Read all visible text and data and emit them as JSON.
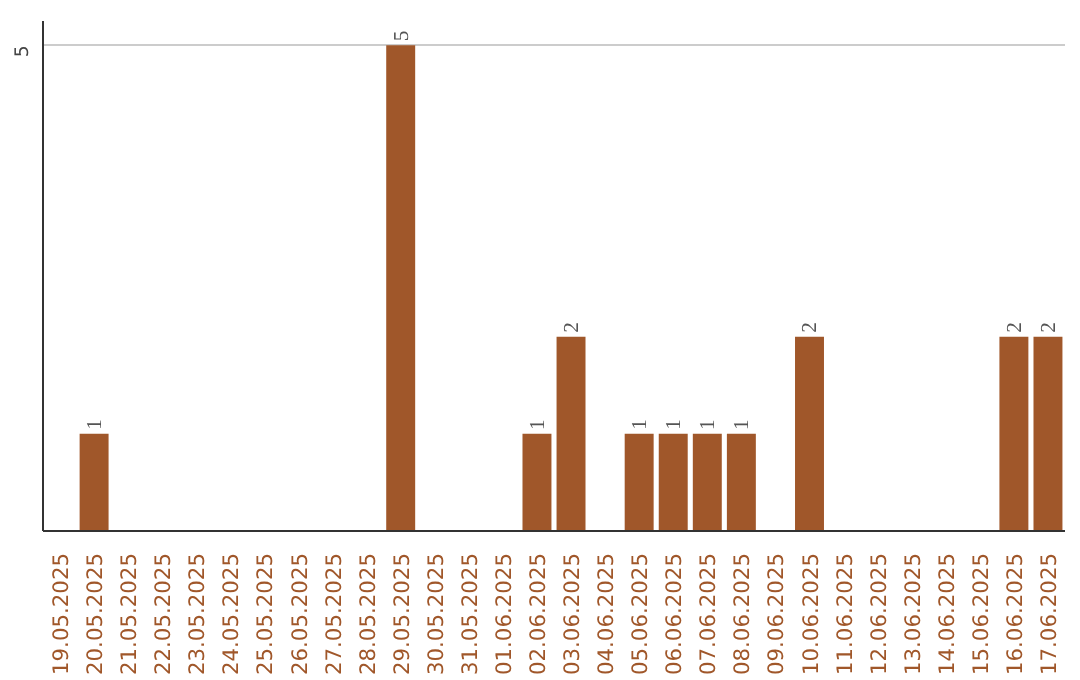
{
  "chart_data": {
    "type": "bar",
    "categories": [
      "19.05.2025",
      "20.05.2025",
      "21.05.2025",
      "22.05.2025",
      "23.05.2025",
      "24.05.2025",
      "25.05.2025",
      "26.05.2025",
      "27.05.2025",
      "28.05.2025",
      "29.05.2025",
      "30.05.2025",
      "31.05.2025",
      "01.06.2025",
      "02.06.2025",
      "03.06.2025",
      "04.06.2025",
      "05.06.2025",
      "06.06.2025",
      "07.06.2025",
      "08.06.2025",
      "09.06.2025",
      "10.06.2025",
      "11.06.2025",
      "12.06.2025",
      "13.06.2025",
      "14.06.2025",
      "15.06.2025",
      "16.06.2025",
      "17.06.2025"
    ],
    "values": [
      0,
      1,
      0,
      0,
      0,
      0,
      0,
      0,
      0,
      0,
      5,
      0,
      0,
      0,
      1,
      2,
      0,
      1,
      1,
      1,
      1,
      0,
      2,
      0,
      0,
      0,
      0,
      0,
      2,
      2
    ],
    "value_labels": [
      null,
      "1",
      null,
      null,
      null,
      null,
      null,
      null,
      null,
      null,
      "5",
      null,
      null,
      null,
      "1",
      "2",
      null,
      "1",
      "1",
      "1",
      "1",
      null,
      "2",
      null,
      null,
      null,
      null,
      null,
      "2",
      "2"
    ],
    "color": "#a0572a",
    "ylim": [
      0,
      5.25
    ],
    "yticks": [
      5
    ],
    "grid": "y"
  }
}
